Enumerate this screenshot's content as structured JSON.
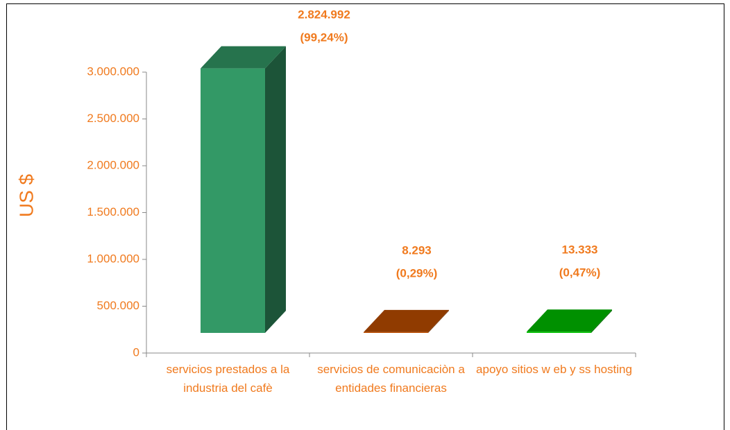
{
  "chart_data": {
    "type": "bar3d",
    "y_label": "US $",
    "categories": [
      "servicios prestados a la industria del cafè",
      "servicios de comunicaciòn a entidades financieras",
      "apoyo sitios w eb y ss hosting"
    ],
    "values": [
      2824992,
      8293,
      13333
    ],
    "value_labels": [
      "2.824.992",
      "8.293",
      "13.333"
    ],
    "shares": [
      99.24,
      0.29,
      0.47
    ],
    "share_labels": [
      "(99,24%)",
      "(0,29%)",
      "(0,47%)"
    ],
    "colors": [
      "#339966",
      "#c04f00",
      "#00c000"
    ],
    "ylim": [
      0,
      3000000
    ],
    "yticks": [
      0,
      {
        "value": 500000,
        "label": "500.000"
      },
      {
        "value": 1000000,
        "label": "1.000.000"
      },
      {
        "value": 1500000,
        "label": "1.500.000"
      },
      {
        "value": 2000000,
        "label": "2.000.000"
      },
      {
        "value": 2500000,
        "label": "2.500.000"
      },
      {
        "value": 3000000,
        "label": "3.000.000"
      }
    ]
  }
}
